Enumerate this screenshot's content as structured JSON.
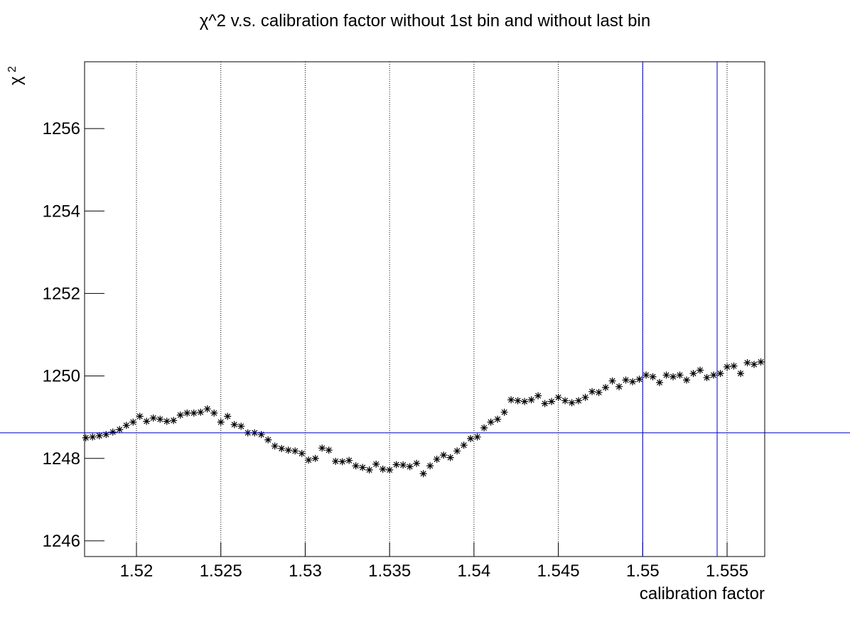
{
  "chart_data": {
    "type": "scatter",
    "title": "χ^2 v.s. calibration factor without 1st bin and without last bin",
    "x_label": "calibration factor",
    "y_label": [
      "χ",
      "2"
    ],
    "x": [
      1.517,
      1.5174,
      1.5178,
      1.5182,
      1.5186,
      1.519,
      1.5194,
      1.5198,
      1.5202,
      1.5206,
      1.521,
      1.5214,
      1.5218,
      1.5222,
      1.5226,
      1.523,
      1.5234,
      1.5238,
      1.5242,
      1.5246,
      1.525,
      1.5254,
      1.5258,
      1.5262,
      1.5266,
      1.527,
      1.5274,
      1.5278,
      1.5282,
      1.5286,
      1.529,
      1.5294,
      1.5298,
      1.5302,
      1.5306,
      1.531,
      1.5314,
      1.5318,
      1.5322,
      1.5326,
      1.533,
      1.5334,
      1.5338,
      1.5342,
      1.5346,
      1.535,
      1.5354,
      1.5358,
      1.5362,
      1.5366,
      1.537,
      1.5374,
      1.5378,
      1.5382,
      1.5386,
      1.539,
      1.5394,
      1.5398,
      1.5402,
      1.5406,
      1.541,
      1.5414,
      1.5418,
      1.5422,
      1.5426,
      1.543,
      1.5434,
      1.5438,
      1.5442,
      1.5446,
      1.545,
      1.5454,
      1.5458,
      1.5462,
      1.5466,
      1.547,
      1.5474,
      1.5478,
      1.5482,
      1.5486,
      1.549,
      1.5494,
      1.5498,
      1.5502,
      1.5506,
      1.551,
      1.5514,
      1.5518,
      1.5522,
      1.5526,
      1.553,
      1.5534,
      1.5538,
      1.5542,
      1.5546,
      1.555,
      1.5554,
      1.5558,
      1.5562,
      1.5566,
      1.557
    ],
    "series": [
      {
        "color": "#000000",
        "values": [
          1248.5,
          1248.52,
          1248.55,
          1248.58,
          1248.64,
          1248.7,
          1248.8,
          1248.88,
          1249.02,
          1248.9,
          1248.98,
          1248.95,
          1248.9,
          1248.92,
          1249.05,
          1249.1,
          1249.1,
          1249.12,
          1249.2,
          1249.1,
          1248.88,
          1249.02,
          1248.82,
          1248.78,
          1248.62,
          1248.62,
          1248.58,
          1248.45,
          1248.3,
          1248.24,
          1248.2,
          1248.18,
          1248.12,
          1247.96,
          1248.0,
          1248.25,
          1248.2,
          1247.93,
          1247.92,
          1247.95,
          1247.82,
          1247.78,
          1247.72,
          1247.86,
          1247.74,
          1247.72,
          1247.85,
          1247.84,
          1247.8,
          1247.88,
          1247.63,
          1247.82,
          1247.98,
          1248.08,
          1248.02,
          1248.18,
          1248.32,
          1248.48,
          1248.52,
          1248.74,
          1248.88,
          1248.95,
          1249.12,
          1249.42,
          1249.4,
          1249.38,
          1249.42,
          1249.52,
          1249.33,
          1249.38,
          1249.48,
          1249.4,
          1249.35,
          1249.4,
          1249.48,
          1249.62,
          1249.6,
          1249.72,
          1249.88,
          1249.74,
          1249.9,
          1249.86,
          1249.92,
          1250.02,
          1249.98,
          1249.84,
          1250.02,
          1249.98,
          1250.02,
          1249.9,
          1250.06,
          1250.14,
          1249.96,
          1250.02,
          1250.06,
          1250.22,
          1250.24,
          1250.06,
          1250.32,
          1250.28,
          1250.34
        ]
      }
    ],
    "xlim": [
      1.516925,
      1.55723
    ],
    "ylim": [
      1245.62,
      1257.62
    ],
    "xticks": [
      1.52,
      1.525,
      1.53,
      1.535,
      1.54,
      1.545,
      1.55,
      1.555
    ],
    "yticks": [
      1246,
      1248,
      1250,
      1252,
      1254,
      1256
    ],
    "x_grid": true,
    "reference_color": "#0000cc",
    "hlines": [
      1248.62
    ],
    "vlines": [
      1.55,
      1.55441
    ]
  }
}
